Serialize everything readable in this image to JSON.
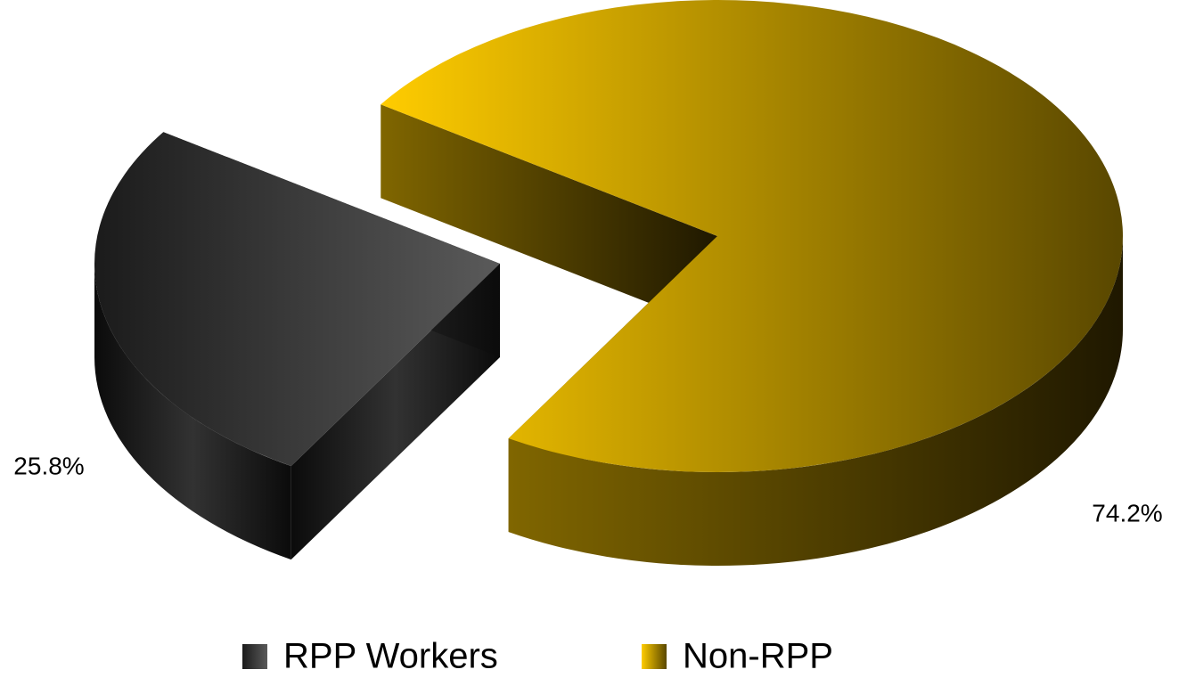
{
  "chart_data": {
    "type": "pie",
    "categories": [
      "RPP Workers",
      "Non-RPP"
    ],
    "values": [
      25.8,
      74.2
    ],
    "value_labels": [
      "25.8%",
      "74.2%"
    ],
    "colors": [
      "#5a5a5a",
      "#ffcc00"
    ],
    "legend": "bottom"
  }
}
